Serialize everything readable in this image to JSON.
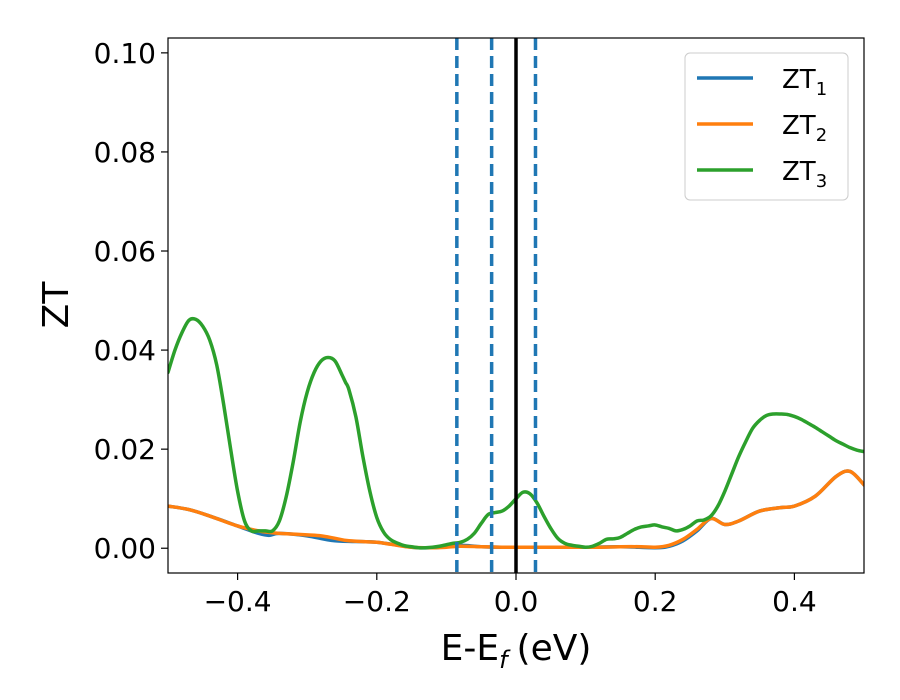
{
  "chart_data": {
    "type": "line",
    "xlabel": "E-E",
    "xlabel_sub": "f",
    "xlabel_unit": "(eV)",
    "ylabel": "ZT",
    "xlim": [
      -0.5,
      0.5
    ],
    "ylim": [
      -0.005,
      0.103
    ],
    "xticks": [
      -0.4,
      -0.2,
      0.0,
      0.2,
      0.4
    ],
    "xtick_labels": [
      "−0.4",
      "−0.2",
      "0.0",
      "0.2",
      "0.4"
    ],
    "yticks": [
      0.0,
      0.02,
      0.04,
      0.06,
      0.08,
      0.1
    ],
    "ytick_labels": [
      "0.00",
      "0.02",
      "0.04",
      "0.06",
      "0.08",
      "0.10"
    ],
    "grid": false,
    "legend_position": "top-right",
    "series": [
      {
        "name": "ZT",
        "name_sub": "1",
        "color": "#1f77b4",
        "x": [
          -0.5,
          -0.47,
          -0.44,
          -0.4,
          -0.37,
          -0.355,
          -0.34,
          -0.3,
          -0.26,
          -0.2,
          -0.15,
          -0.12,
          -0.1,
          -0.08,
          -0.05,
          -0.02,
          0.0,
          0.05,
          0.1,
          0.15,
          0.2,
          0.22,
          0.24,
          0.26,
          0.28,
          0.3,
          0.32,
          0.35,
          0.38,
          0.4,
          0.43,
          0.46,
          0.48,
          0.5
        ],
        "y": [
          0.0085,
          0.0078,
          0.0065,
          0.0045,
          0.003,
          0.0026,
          0.003,
          0.0025,
          0.0015,
          0.0012,
          0.0002,
          0.0001,
          0.0003,
          0.0006,
          0.0003,
          0.0002,
          0.0002,
          0.0002,
          0.0002,
          0.0003,
          0.0001,
          0.0004,
          0.0015,
          0.0035,
          0.006,
          0.0048,
          0.0055,
          0.0075,
          0.0082,
          0.0085,
          0.0105,
          0.0145,
          0.0155,
          0.0128
        ]
      },
      {
        "name": "ZT",
        "name_sub": "2",
        "color": "#ff7f0e",
        "x": [
          -0.5,
          -0.47,
          -0.44,
          -0.4,
          -0.37,
          -0.355,
          -0.34,
          -0.3,
          -0.28,
          -0.26,
          -0.24,
          -0.2,
          -0.18,
          -0.15,
          -0.12,
          -0.1,
          -0.08,
          -0.05,
          -0.02,
          0.0,
          0.03,
          0.06,
          0.09,
          0.12,
          0.15,
          0.18,
          0.2,
          0.22,
          0.24,
          0.26,
          0.28,
          0.3,
          0.32,
          0.35,
          0.38,
          0.4,
          0.43,
          0.46,
          0.48,
          0.5
        ],
        "y": [
          0.0085,
          0.0078,
          0.0065,
          0.0045,
          0.0035,
          0.0032,
          0.003,
          0.0027,
          0.0025,
          0.002,
          0.0015,
          0.0012,
          0.0008,
          0.0002,
          0.0001,
          0.0002,
          0.0004,
          0.0003,
          0.0002,
          0.0002,
          0.0002,
          0.0002,
          0.0002,
          0.0002,
          0.0003,
          0.0003,
          0.0002,
          0.0006,
          0.0018,
          0.0038,
          0.006,
          0.0048,
          0.0055,
          0.0075,
          0.0082,
          0.0085,
          0.0105,
          0.0145,
          0.0155,
          0.0128
        ]
      },
      {
        "name": "ZT",
        "name_sub": "3",
        "color": "#2ca02c",
        "x": [
          -0.5,
          -0.49,
          -0.48,
          -0.47,
          -0.46,
          -0.45,
          -0.44,
          -0.43,
          -0.42,
          -0.41,
          -0.4,
          -0.39,
          -0.38,
          -0.37,
          -0.36,
          -0.35,
          -0.34,
          -0.33,
          -0.32,
          -0.31,
          -0.3,
          -0.29,
          -0.28,
          -0.27,
          -0.26,
          -0.25,
          -0.245,
          -0.24,
          -0.23,
          -0.22,
          -0.21,
          -0.2,
          -0.19,
          -0.18,
          -0.17,
          -0.16,
          -0.15,
          -0.14,
          -0.13,
          -0.12,
          -0.11,
          -0.1,
          -0.09,
          -0.08,
          -0.07,
          -0.06,
          -0.05,
          -0.04,
          -0.03,
          -0.02,
          -0.01,
          0.0,
          0.01,
          0.02,
          0.03,
          0.04,
          0.05,
          0.06,
          0.07,
          0.08,
          0.09,
          0.1,
          0.11,
          0.12,
          0.13,
          0.14,
          0.15,
          0.16,
          0.17,
          0.18,
          0.19,
          0.2,
          0.21,
          0.22,
          0.23,
          0.24,
          0.25,
          0.26,
          0.27,
          0.28,
          0.29,
          0.3,
          0.31,
          0.32,
          0.33,
          0.34,
          0.35,
          0.36,
          0.37,
          0.38,
          0.39,
          0.4,
          0.41,
          0.42,
          0.43,
          0.44,
          0.45,
          0.46,
          0.47,
          0.48,
          0.49,
          0.5
        ],
        "y": [
          0.0355,
          0.04,
          0.0435,
          0.046,
          0.0462,
          0.0448,
          0.042,
          0.037,
          0.029,
          0.02,
          0.0115,
          0.0055,
          0.0035,
          0.0035,
          0.0035,
          0.0035,
          0.0055,
          0.0105,
          0.0175,
          0.0255,
          0.0315,
          0.0355,
          0.0378,
          0.0385,
          0.0378,
          0.035,
          0.0335,
          0.032,
          0.0265,
          0.0185,
          0.0115,
          0.0062,
          0.0032,
          0.0017,
          0.001,
          0.0005,
          0.0003,
          0.0001,
          0.0001,
          0.0002,
          0.0004,
          0.0007,
          0.001,
          0.0012,
          0.0018,
          0.003,
          0.005,
          0.0068,
          0.0072,
          0.0075,
          0.0085,
          0.01,
          0.0113,
          0.011,
          0.0092,
          0.0065,
          0.004,
          0.002,
          0.001,
          0.0006,
          0.0004,
          0.0002,
          0.0004,
          0.001,
          0.0018,
          0.0019,
          0.0022,
          0.003,
          0.0038,
          0.0043,
          0.0045,
          0.0047,
          0.0043,
          0.004,
          0.0035,
          0.0038,
          0.0045,
          0.0055,
          0.0057,
          0.0065,
          0.0085,
          0.0115,
          0.015,
          0.0185,
          0.0215,
          0.0242,
          0.0258,
          0.0268,
          0.0271,
          0.0271,
          0.027,
          0.0266,
          0.026,
          0.0252,
          0.0244,
          0.0235,
          0.0226,
          0.0217,
          0.021,
          0.0203,
          0.0198,
          0.0195
        ]
      }
    ],
    "reference_lines": {
      "solid": {
        "x": 0.0,
        "color": "#000000"
      },
      "dashed": {
        "x": [
          -0.085,
          -0.035,
          0.028
        ],
        "color": "#1f77b4"
      }
    }
  }
}
